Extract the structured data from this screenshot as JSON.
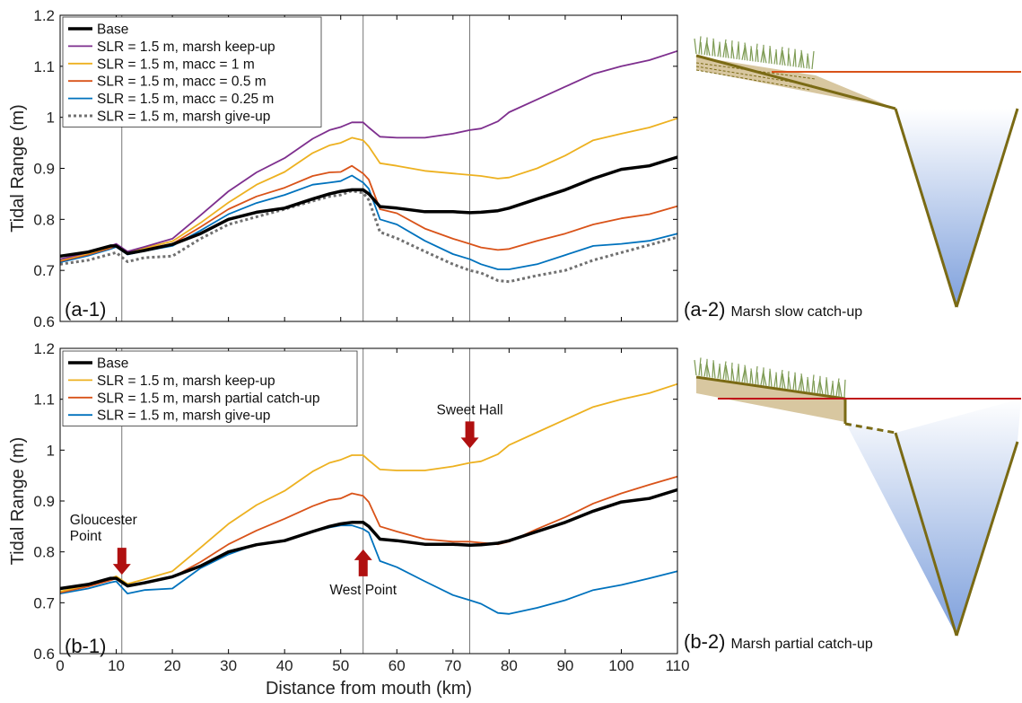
{
  "figure": {
    "xlabel": "Distance from mouth (km)",
    "schematic_a_label": "(a-2)",
    "schematic_a_text": "Marsh slow catch-up",
    "schematic_b_label": "(b-2)",
    "schematic_b_text": "Marsh partial catch-up"
  },
  "colors": {
    "black": "#000000",
    "purple": "#7E2F8E",
    "yellow": "#EDB120",
    "orange": "#D95319",
    "blue": "#0072BD",
    "gray": "#707070",
    "arrow": "#B01010",
    "soil": "#7A6A14",
    "soil_fill": "#D8C7A0",
    "water_top": "#FFFFFF",
    "water_bottom": "#7EA0DC",
    "grass": "#7C9A52"
  },
  "chart_data": [
    {
      "type": "line",
      "panel_label": "(a-1)",
      "xlabel": "",
      "ylabel": "Tidal Range (m)",
      "xlim": [
        0,
        110
      ],
      "ylim": [
        0.6,
        1.2
      ],
      "xticks": [
        0,
        10,
        20,
        30,
        40,
        50,
        60,
        70,
        80,
        90,
        100,
        110
      ],
      "yticks": [
        0.6,
        0.7,
        0.8,
        0.9,
        1.0,
        1.1,
        1.2
      ],
      "ytick_labels": [
        "0.6",
        "0.7",
        "0.8",
        "0.9",
        "1",
        "1.1",
        "1.2"
      ],
      "vlines": [
        11,
        54,
        73
      ],
      "grid": false,
      "legend_position": "top-left",
      "x": [
        0,
        5,
        9,
        10,
        12,
        15,
        20,
        25,
        30,
        35,
        40,
        45,
        48,
        50,
        52,
        54,
        55,
        57,
        60,
        65,
        70,
        73,
        75,
        78,
        80,
        85,
        90,
        95,
        100,
        105,
        110
      ],
      "series": [
        {
          "name": "Base",
          "color_key": "black",
          "width": 3.5,
          "dash": "",
          "values": [
            0.728,
            0.736,
            0.748,
            0.748,
            0.733,
            0.739,
            0.751,
            0.772,
            0.8,
            0.814,
            0.822,
            0.84,
            0.85,
            0.855,
            0.858,
            0.858,
            0.85,
            0.825,
            0.822,
            0.815,
            0.815,
            0.813,
            0.814,
            0.817,
            0.822,
            0.84,
            0.858,
            0.88,
            0.898,
            0.905,
            0.922
          ]
        },
        {
          "name": "SLR = 1.5 m, marsh keep-up",
          "color_key": "purple",
          "width": 1.8,
          "dash": "",
          "values": [
            0.722,
            0.735,
            0.748,
            0.752,
            0.737,
            0.746,
            0.762,
            0.808,
            0.855,
            0.892,
            0.92,
            0.958,
            0.975,
            0.981,
            0.99,
            0.99,
            0.98,
            0.962,
            0.96,
            0.96,
            0.968,
            0.975,
            0.978,
            0.992,
            1.01,
            1.035,
            1.06,
            1.085,
            1.1,
            1.112,
            1.13
          ]
        },
        {
          "name": "SLR = 1.5 m, macc = 1 m",
          "color_key": "yellow",
          "width": 1.8,
          "dash": "",
          "values": [
            0.72,
            0.733,
            0.746,
            0.75,
            0.736,
            0.744,
            0.757,
            0.793,
            0.833,
            0.868,
            0.893,
            0.93,
            0.945,
            0.95,
            0.96,
            0.955,
            0.943,
            0.91,
            0.905,
            0.895,
            0.89,
            0.887,
            0.885,
            0.88,
            0.882,
            0.9,
            0.925,
            0.955,
            0.968,
            0.98,
            0.998
          ]
        },
        {
          "name": "SLR = 1.5 m, macc = 0.5 m",
          "color_key": "orange",
          "width": 1.8,
          "dash": "",
          "values": [
            0.718,
            0.731,
            0.744,
            0.748,
            0.734,
            0.742,
            0.752,
            0.785,
            0.82,
            0.845,
            0.862,
            0.885,
            0.892,
            0.893,
            0.905,
            0.89,
            0.878,
            0.82,
            0.812,
            0.782,
            0.762,
            0.752,
            0.745,
            0.74,
            0.742,
            0.758,
            0.772,
            0.79,
            0.802,
            0.81,
            0.826
          ]
        },
        {
          "name": "SLR = 1.5 m, macc = 0.25 m",
          "color_key": "blue",
          "width": 1.8,
          "dash": "",
          "values": [
            0.716,
            0.729,
            0.742,
            0.746,
            0.731,
            0.738,
            0.748,
            0.778,
            0.81,
            0.832,
            0.848,
            0.868,
            0.872,
            0.875,
            0.886,
            0.872,
            0.86,
            0.8,
            0.79,
            0.758,
            0.732,
            0.722,
            0.712,
            0.702,
            0.702,
            0.712,
            0.73,
            0.748,
            0.752,
            0.758,
            0.772
          ]
        },
        {
          "name": "SLR = 1.5 m, marsh give-up",
          "color_key": "gray",
          "width": 3,
          "dash": "3,3",
          "values": [
            0.712,
            0.72,
            0.732,
            0.735,
            0.717,
            0.725,
            0.728,
            0.762,
            0.79,
            0.805,
            0.82,
            0.836,
            0.845,
            0.848,
            0.856,
            0.852,
            0.838,
            0.775,
            0.763,
            0.737,
            0.712,
            0.7,
            0.695,
            0.68,
            0.678,
            0.69,
            0.7,
            0.72,
            0.735,
            0.75,
            0.765
          ]
        }
      ]
    },
    {
      "type": "line",
      "panel_label": "(b-1)",
      "xlabel": "Distance from mouth (km)",
      "ylabel": "Tidal Range (m)",
      "xlim": [
        0,
        110
      ],
      "ylim": [
        0.6,
        1.2
      ],
      "xticks": [
        0,
        10,
        20,
        30,
        40,
        50,
        60,
        70,
        80,
        90,
        100,
        110
      ],
      "xtick_labels": [
        "0",
        "10",
        "20",
        "30",
        "40",
        "50",
        "60",
        "70",
        "80",
        "90",
        "100",
        "110"
      ],
      "yticks": [
        0.6,
        0.7,
        0.8,
        0.9,
        1.0,
        1.1,
        1.2
      ],
      "ytick_labels": [
        "0.6",
        "0.7",
        "0.8",
        "0.9",
        "1",
        "1.1",
        "1.2"
      ],
      "vlines": [
        11,
        54,
        73
      ],
      "grid": false,
      "legend_position": "top-left",
      "annotations": [
        {
          "lines": [
            "Gloucester",
            "Point"
          ],
          "x": 11,
          "direction": "down"
        },
        {
          "lines": [
            "West Point"
          ],
          "x": 54,
          "direction": "up"
        },
        {
          "lines": [
            "Sweet Hall"
          ],
          "x": 73,
          "direction": "down"
        }
      ],
      "x": [
        0,
        5,
        9,
        10,
        12,
        15,
        20,
        25,
        30,
        35,
        40,
        45,
        48,
        50,
        52,
        54,
        55,
        57,
        60,
        65,
        70,
        73,
        75,
        78,
        80,
        85,
        90,
        95,
        100,
        105,
        110
      ],
      "series": [
        {
          "name": "Base",
          "color_key": "black",
          "width": 3.5,
          "dash": "",
          "values": [
            0.728,
            0.736,
            0.748,
            0.748,
            0.733,
            0.739,
            0.751,
            0.772,
            0.8,
            0.814,
            0.822,
            0.84,
            0.85,
            0.855,
            0.858,
            0.858,
            0.85,
            0.825,
            0.822,
            0.815,
            0.815,
            0.813,
            0.814,
            0.817,
            0.822,
            0.84,
            0.858,
            0.88,
            0.898,
            0.905,
            0.922
          ]
        },
        {
          "name": "SLR = 1.5 m, marsh keep-up",
          "color_key": "yellow",
          "width": 1.8,
          "dash": "",
          "values": [
            0.722,
            0.735,
            0.748,
            0.752,
            0.737,
            0.746,
            0.762,
            0.808,
            0.855,
            0.892,
            0.92,
            0.958,
            0.975,
            0.981,
            0.99,
            0.99,
            0.98,
            0.962,
            0.96,
            0.96,
            0.968,
            0.975,
            0.978,
            0.992,
            1.01,
            1.035,
            1.06,
            1.085,
            1.1,
            1.112,
            1.13
          ]
        },
        {
          "name": "SLR = 1.5 m, marsh partial catch-up",
          "color_key": "orange",
          "width": 1.8,
          "dash": "",
          "values": [
            0.72,
            0.732,
            0.744,
            0.748,
            0.734,
            0.74,
            0.75,
            0.78,
            0.815,
            0.842,
            0.865,
            0.89,
            0.902,
            0.905,
            0.915,
            0.91,
            0.898,
            0.85,
            0.84,
            0.825,
            0.82,
            0.82,
            0.818,
            0.815,
            0.82,
            0.845,
            0.868,
            0.895,
            0.915,
            0.932,
            0.948
          ]
        },
        {
          "name": "SLR = 1.5 m, marsh give-up",
          "color_key": "blue",
          "width": 1.8,
          "dash": "",
          "values": [
            0.718,
            0.728,
            0.74,
            0.742,
            0.718,
            0.725,
            0.728,
            0.768,
            0.795,
            0.815,
            0.822,
            0.84,
            0.848,
            0.852,
            0.852,
            0.845,
            0.838,
            0.782,
            0.77,
            0.742,
            0.715,
            0.705,
            0.698,
            0.68,
            0.678,
            0.69,
            0.705,
            0.725,
            0.735,
            0.748,
            0.762
          ]
        }
      ]
    }
  ]
}
